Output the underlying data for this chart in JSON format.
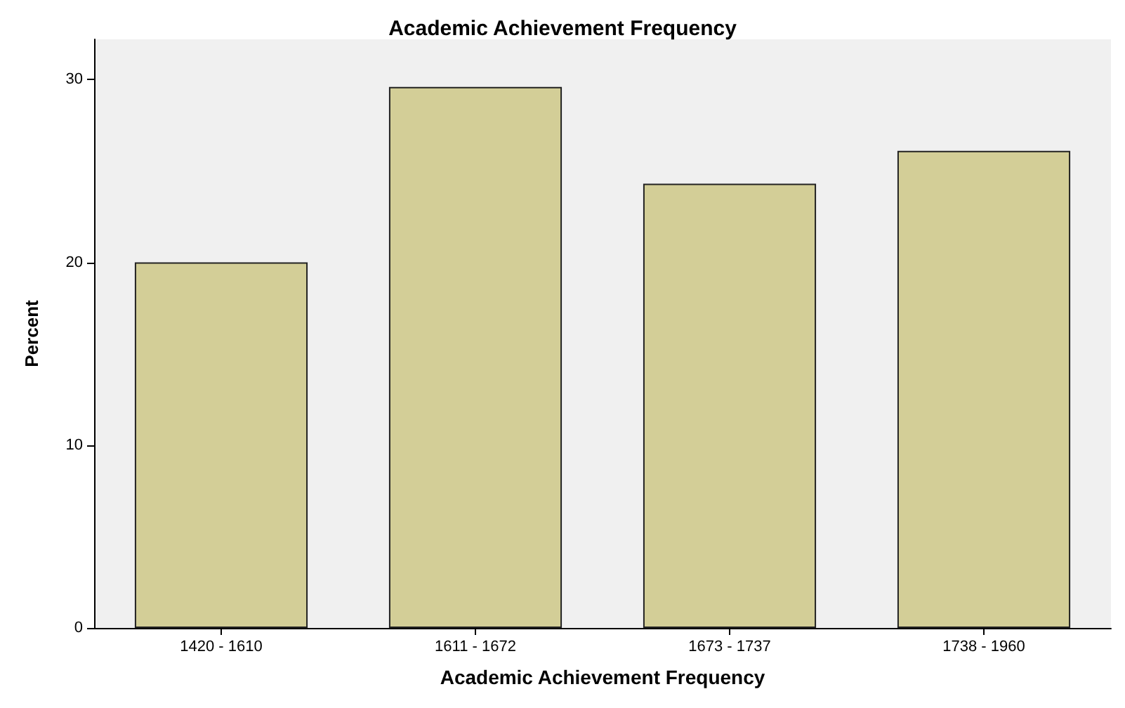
{
  "chart_data": {
    "type": "bar",
    "title": "Academic Achievement Frequency",
    "xlabel": "Academic Achievement Frequency",
    "ylabel": "Percent",
    "categories": [
      "1420 - 1610",
      "1611 - 1672",
      "1673 - 1737",
      "1738 - 1960"
    ],
    "values": [
      20.0,
      29.6,
      24.3,
      26.1
    ],
    "color": "#d3ce97",
    "ylim": [
      0,
      32.2
    ],
    "yticks": [
      0,
      10,
      20,
      30
    ],
    "grid": false
  }
}
